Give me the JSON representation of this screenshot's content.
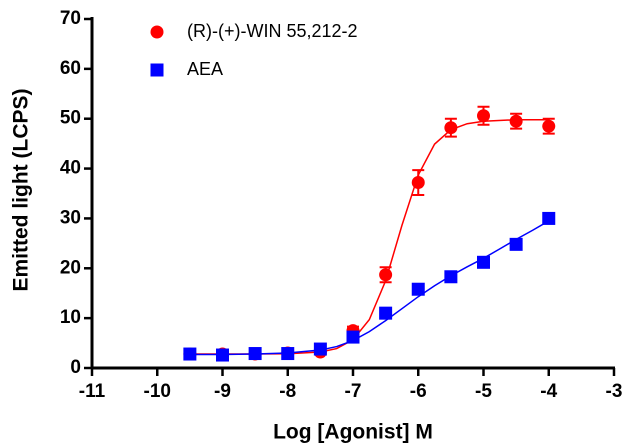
{
  "chart_data": {
    "type": "scatter",
    "xlabel": "Log [Agonist] M",
    "ylabel": "Emitted light (LCPS)",
    "xlim": [
      -11,
      -3
    ],
    "ylim": [
      0,
      70
    ],
    "xticks": [
      -11,
      -10,
      -9,
      -8,
      -7,
      -6,
      -5,
      -4,
      -3
    ],
    "yticks": [
      0,
      10,
      20,
      30,
      40,
      50,
      60,
      70
    ],
    "series": [
      {
        "name": "(R)-(+)-WIN 55,212-2",
        "color": "#ff0000",
        "marker": "circle",
        "x": [
          -9.5,
          -9,
          -8.5,
          -8,
          -7.5,
          -7,
          -6.5,
          -6,
          -5.5,
          -5,
          -4.5,
          -4
        ],
        "values": [
          2.8,
          2.8,
          2.8,
          3.0,
          3.2,
          7.5,
          18.7,
          37.2,
          48.2,
          50.6,
          49.5,
          48.5
        ],
        "errors": [
          0.4,
          0.4,
          0.4,
          0.4,
          0.5,
          0.8,
          1.5,
          2.5,
          1.8,
          1.8,
          1.5,
          1.5
        ],
        "fit": {
          "x": [
            -9.5,
            -9,
            -8.5,
            -8,
            -7.5,
            -7.25,
            -7,
            -6.75,
            -6.5,
            -6.25,
            -6,
            -5.75,
            -5.5,
            -5.25,
            -5,
            -4.5,
            -4
          ],
          "values": [
            2.8,
            2.8,
            2.8,
            2.86,
            3.2,
            3.9,
            5.65,
            9.7,
            17.5,
            28.6,
            38.7,
            44.9,
            47.8,
            49.0,
            49.5,
            49.8,
            49.8
          ]
        }
      },
      {
        "name": "AEA",
        "color": "#0000ff",
        "marker": "square",
        "x": [
          -9.5,
          -9,
          -8.5,
          -8,
          -7.5,
          -7,
          -6.5,
          -6,
          -5.5,
          -5,
          -4.5,
          -4
        ],
        "values": [
          2.8,
          2.6,
          2.9,
          2.9,
          3.8,
          6.2,
          11.0,
          15.8,
          18.3,
          21.2,
          24.8,
          30.0
        ],
        "errors": [
          0.4,
          0.4,
          0.4,
          0.4,
          0.5,
          0.6,
          0.6,
          0.6,
          0.6,
          0.8,
          0.8,
          1.0
        ],
        "fit": {
          "x": [
            -9.5,
            -9,
            -8.5,
            -8,
            -7.5,
            -7.25,
            -7,
            -6.75,
            -6.5,
            -6.25,
            -6,
            -5.75,
            -5.5,
            -5.25,
            -5,
            -4.75,
            -4.5,
            -4.25,
            -4
          ],
          "values": [
            2.7,
            2.7,
            2.8,
            3.0,
            3.6,
            4.3,
            5.5,
            7.3,
            9.5,
            11.9,
            14.3,
            16.5,
            18.5,
            20.3,
            22.0,
            23.9,
            25.8,
            27.6,
            29.5
          ]
        }
      }
    ]
  }
}
